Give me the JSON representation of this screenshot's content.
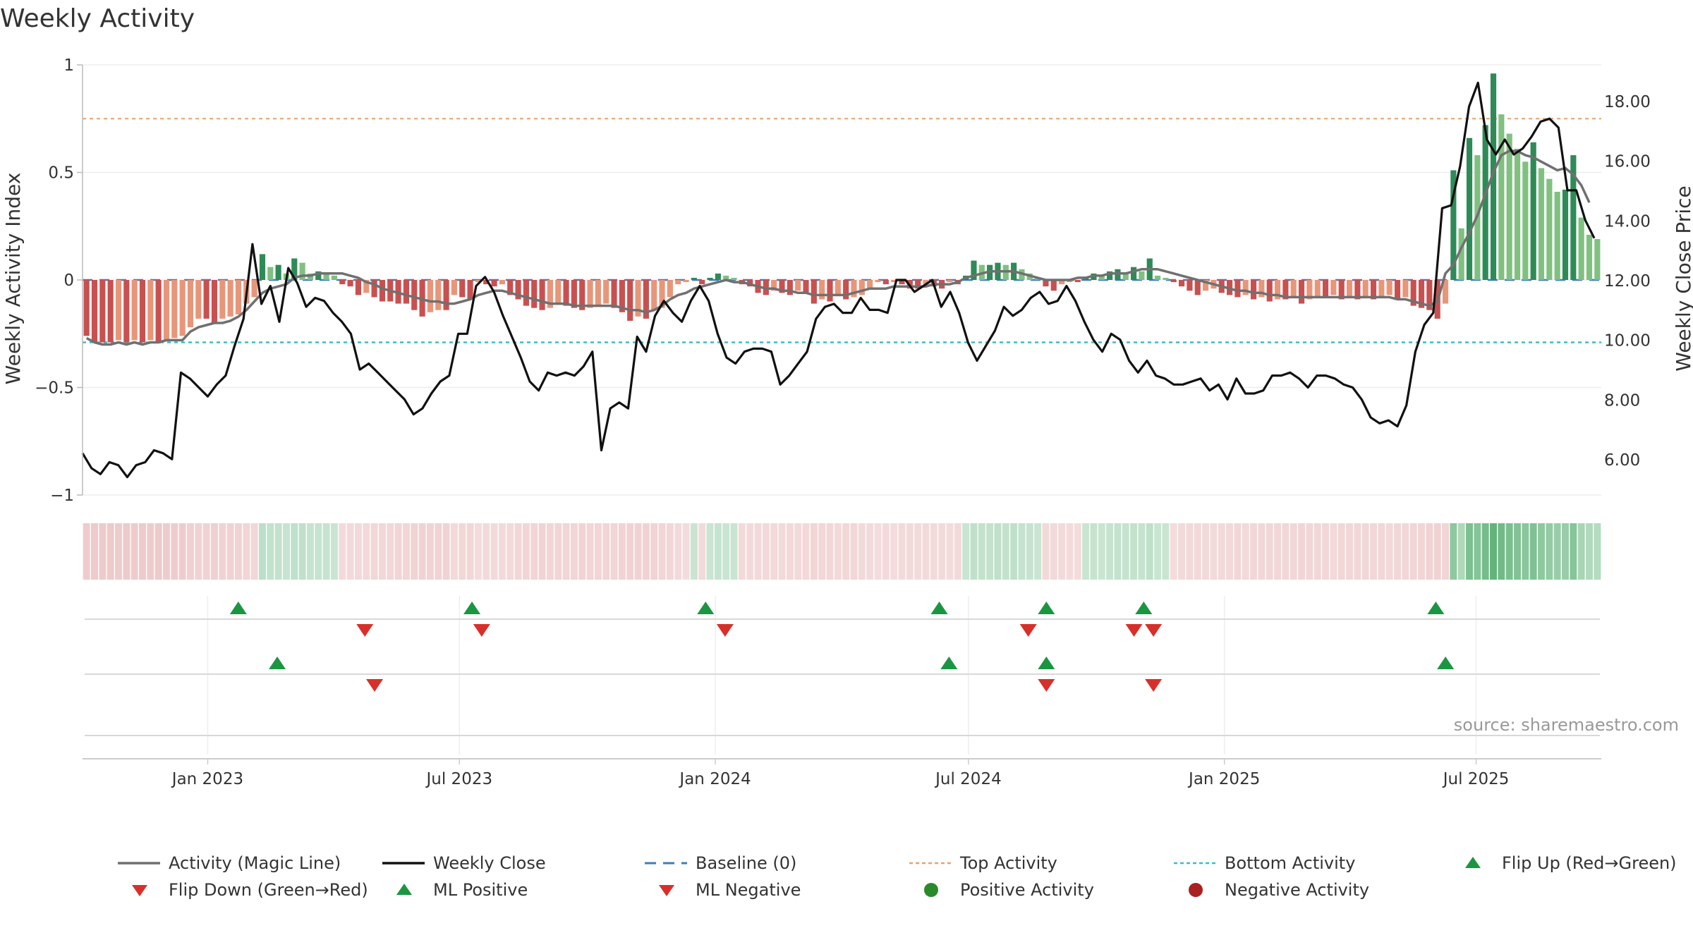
{
  "title": "Weekly Activity",
  "source": "source: sharemaestro.com",
  "colors": {
    "green_dark": "#2e8b57",
    "green_light": "#80c080",
    "red_dark": "#c95050",
    "red_light": "#e8967a",
    "magic_line": "#707070",
    "close_line": "#111111",
    "baseline": "#3a7ebf",
    "top_line": "#f0a060",
    "bottom_line": "#30c0d0",
    "flip_up": "#1a9641",
    "flip_down": "#d7302a"
  },
  "chart_data": {
    "type": "bar",
    "title": "Weekly Activity",
    "ylabel_left": "Weekly Activity Index",
    "ylabel_right": "Weekly Close Price",
    "ylim_left": [
      -1,
      1
    ],
    "ylim_right": [
      4.8,
      19.2
    ],
    "yticks_left": [
      "1",
      "0.5",
      "0",
      "−0.5",
      "−1"
    ],
    "yticks_left_values": [
      1,
      0.5,
      0,
      -0.5,
      -1
    ],
    "yticks_right": [
      "18.00",
      "16.00",
      "14.00",
      "12.00",
      "10.00",
      "8.00",
      "6.00"
    ],
    "yticks_right_values": [
      18,
      16,
      14,
      12,
      10,
      8,
      6
    ],
    "x_start": "2022-10-03",
    "x_end": "2025-09-29",
    "xticks": [
      {
        "label": "Jan 2023",
        "date": "2023-01-01"
      },
      {
        "label": "Jul 2023",
        "date": "2023-07-01"
      },
      {
        "label": "Jan 2024",
        "date": "2024-01-01"
      },
      {
        "label": "Jul 2024",
        "date": "2024-07-01"
      },
      {
        "label": "Jan 2025",
        "date": "2025-01-01"
      },
      {
        "label": "Jul 2025",
        "date": "2025-07-01"
      }
    ],
    "reference_lines": {
      "baseline": 0,
      "top_activity": 0.75,
      "bottom_activity": -0.29
    },
    "bar_series": {
      "name": "Weekly Activity Index (bars)",
      "values": [
        -0.26,
        -0.29,
        -0.29,
        -0.29,
        -0.28,
        -0.29,
        -0.28,
        -0.29,
        -0.28,
        -0.29,
        -0.28,
        -0.27,
        -0.26,
        -0.22,
        -0.18,
        -0.18,
        -0.2,
        -0.18,
        -0.17,
        -0.16,
        -0.11,
        -0.08,
        0.12,
        0.06,
        0.07,
        0.03,
        0.1,
        0.08,
        0.03,
        0.04,
        0.03,
        0.02,
        -0.02,
        -0.03,
        -0.07,
        -0.06,
        -0.08,
        -0.1,
        -0.1,
        -0.11,
        -0.11,
        -0.14,
        -0.17,
        -0.15,
        -0.14,
        -0.14,
        -0.07,
        -0.08,
        -0.09,
        -0.01,
        -0.02,
        -0.03,
        -0.02,
        -0.07,
        -0.09,
        -0.12,
        -0.13,
        -0.14,
        -0.13,
        -0.11,
        -0.12,
        -0.13,
        -0.14,
        -0.13,
        -0.12,
        -0.11,
        -0.13,
        -0.15,
        -0.19,
        -0.17,
        -0.18,
        -0.14,
        -0.13,
        -0.08,
        -0.02,
        -0.01,
        0.01,
        -0.02,
        0.01,
        0.03,
        0.02,
        0.01,
        -0.02,
        -0.03,
        -0.06,
        -0.07,
        -0.05,
        -0.06,
        -0.07,
        -0.05,
        -0.06,
        -0.11,
        -0.09,
        -0.1,
        -0.07,
        -0.09,
        -0.08,
        -0.07,
        -0.04,
        -0.01,
        -0.02,
        -0.01,
        -0.02,
        -0.04,
        -0.04,
        -0.02,
        -0.03,
        -0.04,
        -0.01,
        -0.02,
        0.02,
        0.09,
        0.07,
        0.07,
        0.08,
        0.07,
        0.08,
        0.05,
        0.03,
        0.01,
        -0.03,
        -0.05,
        -0.02,
        -0.01,
        -0.01,
        0.01,
        0.03,
        0.02,
        0.04,
        0.05,
        0.03,
        0.06,
        0.04,
        0.1,
        0.02,
        0.01,
        -0.01,
        -0.03,
        -0.05,
        -0.07,
        -0.05,
        -0.04,
        -0.06,
        -0.07,
        -0.08,
        -0.07,
        -0.09,
        -0.08,
        -0.1,
        -0.09,
        -0.09,
        -0.08,
        -0.11,
        -0.09,
        -0.08,
        -0.08,
        -0.07,
        -0.09,
        -0.08,
        -0.09,
        -0.08,
        -0.09,
        -0.08,
        -0.07,
        -0.09,
        -0.08,
        -0.12,
        -0.13,
        -0.14,
        -0.18,
        -0.11,
        0.51,
        0.24,
        0.66,
        0.58,
        0.72,
        0.96,
        0.77,
        0.68,
        0.61,
        0.55,
        0.64,
        0.52,
        0.47,
        0.41,
        0.42,
        0.58,
        0.29,
        0.21,
        0.19
      ]
    },
    "magic_line": {
      "name": "Activity (Magic Line)",
      "values": [
        -0.27,
        -0.29,
        -0.3,
        -0.3,
        -0.29,
        -0.3,
        -0.29,
        -0.3,
        -0.29,
        -0.29,
        -0.28,
        -0.28,
        -0.28,
        -0.24,
        -0.22,
        -0.21,
        -0.2,
        -0.2,
        -0.19,
        -0.17,
        -0.14,
        -0.1,
        -0.06,
        -0.04,
        -0.03,
        -0.02,
        0.01,
        0.02,
        0.02,
        0.03,
        0.03,
        0.03,
        0.03,
        0.02,
        0.01,
        -0.01,
        -0.02,
        -0.04,
        -0.05,
        -0.06,
        -0.07,
        -0.08,
        -0.09,
        -0.1,
        -0.1,
        -0.11,
        -0.11,
        -0.1,
        -0.09,
        -0.07,
        -0.06,
        -0.05,
        -0.05,
        -0.06,
        -0.07,
        -0.08,
        -0.09,
        -0.1,
        -0.11,
        -0.11,
        -0.11,
        -0.12,
        -0.12,
        -0.12,
        -0.12,
        -0.12,
        -0.12,
        -0.13,
        -0.14,
        -0.14,
        -0.15,
        -0.14,
        -0.12,
        -0.09,
        -0.07,
        -0.06,
        -0.04,
        -0.03,
        -0.02,
        -0.01,
        0.0,
        -0.01,
        -0.01,
        -0.02,
        -0.03,
        -0.04,
        -0.04,
        -0.05,
        -0.05,
        -0.06,
        -0.06,
        -0.07,
        -0.07,
        -0.07,
        -0.07,
        -0.07,
        -0.06,
        -0.05,
        -0.04,
        -0.04,
        -0.04,
        -0.03,
        -0.03,
        -0.03,
        -0.03,
        -0.03,
        -0.02,
        -0.02,
        -0.02,
        -0.01,
        0.01,
        0.02,
        0.03,
        0.04,
        0.04,
        0.04,
        0.04,
        0.03,
        0.02,
        0.01,
        0.0,
        0.0,
        0.0,
        0.0,
        0.01,
        0.01,
        0.02,
        0.02,
        0.03,
        0.03,
        0.03,
        0.04,
        0.05,
        0.05,
        0.05,
        0.04,
        0.03,
        0.02,
        0.01,
        0.0,
        -0.01,
        -0.02,
        -0.03,
        -0.04,
        -0.05,
        -0.05,
        -0.06,
        -0.06,
        -0.07,
        -0.07,
        -0.08,
        -0.08,
        -0.08,
        -0.08,
        -0.08,
        -0.08,
        -0.08,
        -0.08,
        -0.08,
        -0.08,
        -0.08,
        -0.08,
        -0.08,
        -0.08,
        -0.09,
        -0.09,
        -0.1,
        -0.11,
        -0.12,
        -0.1,
        0.03,
        0.07,
        0.15,
        0.22,
        0.3,
        0.4,
        0.5,
        0.58,
        0.6,
        0.6,
        0.58,
        0.57,
        0.55,
        0.53,
        0.51,
        0.52,
        0.49,
        0.44,
        0.36
      ]
    },
    "close_series": {
      "name": "Weekly Close",
      "values": [
        6.2,
        5.7,
        5.5,
        5.9,
        5.8,
        5.4,
        5.8,
        5.9,
        6.3,
        6.2,
        6.0,
        8.9,
        8.7,
        8.4,
        8.1,
        8.5,
        8.8,
        9.8,
        10.7,
        13.2,
        11.2,
        11.8,
        10.6,
        12.4,
        11.9,
        11.1,
        11.4,
        11.3,
        10.9,
        10.6,
        10.2,
        9.0,
        9.2,
        8.9,
        8.6,
        8.3,
        8.0,
        7.5,
        7.7,
        8.2,
        8.6,
        8.8,
        10.2,
        10.2,
        11.8,
        12.1,
        11.6,
        10.8,
        10.1,
        9.4,
        8.6,
        8.3,
        8.9,
        8.8,
        8.9,
        8.8,
        9.1,
        9.6,
        6.3,
        7.7,
        7.9,
        7.7,
        10.1,
        9.6,
        10.8,
        11.3,
        10.9,
        10.6,
        11.3,
        11.8,
        11.3,
        10.2,
        9.4,
        9.2,
        9.6,
        9.7,
        9.7,
        9.6,
        8.5,
        8.8,
        9.2,
        9.6,
        10.7,
        11.1,
        11.2,
        10.9,
        10.9,
        11.4,
        11.0,
        11.0,
        10.9,
        12.0,
        12.0,
        11.6,
        11.8,
        12.0,
        11.1,
        11.6,
        10.9,
        9.9,
        9.3,
        9.8,
        10.3,
        11.1,
        10.8,
        11.0,
        11.4,
        11.6,
        11.2,
        11.3,
        11.8,
        11.3,
        10.6,
        10.0,
        9.6,
        10.2,
        10.0,
        9.3,
        8.9,
        9.3,
        8.8,
        8.7,
        8.5,
        8.5,
        8.6,
        8.7,
        8.3,
        8.5,
        8.0,
        8.7,
        8.2,
        8.2,
        8.3,
        8.8,
        8.8,
        8.9,
        8.7,
        8.4,
        8.8,
        8.8,
        8.7,
        8.5,
        8.4,
        8.0,
        7.4,
        7.2,
        7.3,
        7.1,
        7.8,
        9.6,
        10.5,
        10.9,
        14.4,
        14.5,
        15.8,
        17.8,
        18.6,
        16.7,
        16.2,
        16.7,
        16.2,
        16.4,
        16.8,
        17.3,
        17.4,
        17.1,
        15.0,
        15.0,
        14.0,
        13.4
      ],
      "note": "close series covers the visible black line; later weeks aligned to the right end of the axis"
    },
    "band_strip": {
      "name": "Weekly activity shading strip",
      "values": [
        -0.26,
        -0.29,
        -0.29,
        -0.29,
        -0.28,
        -0.29,
        -0.28,
        -0.29,
        -0.28,
        -0.29,
        -0.28,
        -0.27,
        -0.26,
        -0.22,
        -0.18,
        -0.18,
        -0.2,
        -0.18,
        -0.17,
        -0.16,
        -0.11,
        -0.08,
        0.12,
        0.06,
        0.07,
        0.03,
        0.1,
        0.08,
        0.03,
        0.04,
        0.03,
        0.02,
        -0.02,
        -0.03,
        -0.07,
        -0.06,
        -0.08,
        -0.1,
        -0.1,
        -0.11,
        -0.11,
        -0.14,
        -0.17,
        -0.15,
        -0.14,
        -0.14,
        -0.07,
        -0.08,
        -0.09,
        -0.01,
        -0.02,
        -0.03,
        -0.02,
        -0.07,
        -0.09,
        -0.12,
        -0.13,
        -0.14,
        -0.13,
        -0.11,
        -0.12,
        -0.13,
        -0.14,
        -0.13,
        -0.12,
        -0.11,
        -0.13,
        -0.15,
        -0.19,
        -0.17,
        -0.18,
        -0.14,
        -0.13,
        -0.08,
        -0.02,
        -0.01,
        0.01,
        -0.02,
        0.01,
        0.03,
        0.02,
        0.01,
        -0.02,
        -0.03,
        -0.06,
        -0.07,
        -0.05,
        -0.06,
        -0.07,
        -0.05,
        -0.06,
        -0.11,
        -0.09,
        -0.1,
        -0.07,
        -0.09,
        -0.08,
        -0.07,
        -0.04,
        -0.01,
        -0.02,
        -0.01,
        -0.02,
        -0.04,
        -0.04,
        -0.02,
        -0.03,
        -0.04,
        -0.01,
        -0.02,
        0.02,
        0.09,
        0.07,
        0.07,
        0.08,
        0.07,
        0.08,
        0.05,
        0.03,
        0.01,
        -0.03,
        -0.05,
        -0.02,
        -0.01,
        -0.01,
        0.01,
        0.03,
        0.02,
        0.04,
        0.05,
        0.03,
        0.06,
        0.04,
        0.1,
        0.02,
        0.01,
        -0.01,
        -0.03,
        -0.05,
        -0.07,
        -0.05,
        -0.04,
        -0.06,
        -0.07,
        -0.08,
        -0.07,
        -0.09,
        -0.08,
        -0.1,
        -0.09,
        -0.09,
        -0.08,
        -0.11,
        -0.09,
        -0.08,
        -0.08,
        -0.07,
        -0.09,
        -0.08,
        -0.09,
        -0.08,
        -0.09,
        -0.08,
        -0.07,
        -0.09,
        -0.08,
        -0.12,
        -0.13,
        -0.14,
        -0.18,
        -0.11,
        0.51,
        0.24,
        0.66,
        0.58,
        0.72,
        0.96,
        0.77,
        0.68,
        0.61,
        0.55,
        0.64,
        0.52,
        0.47,
        0.41,
        0.42,
        0.58,
        0.29,
        0.21,
        0.19
      ]
    },
    "flip_up_markers": [
      "2023-01-23",
      "2023-07-10",
      "2023-12-25",
      "2024-06-10",
      "2024-08-26",
      "2024-11-04",
      "2025-06-02"
    ],
    "flip_down_markers": [
      "2023-04-24",
      "2023-07-17",
      "2024-01-08",
      "2024-08-13",
      "2024-10-28",
      "2024-11-11"
    ],
    "ml_positive_markers": [
      "2023-02-20",
      "2024-06-17",
      "2024-08-26",
      "2025-06-09"
    ],
    "ml_negative_markers": [
      "2023-05-01",
      "2024-08-26",
      "2024-11-11"
    ],
    "legend": [
      {
        "key": "magic",
        "label": "Activity (Magic Line)"
      },
      {
        "key": "close",
        "label": "Weekly Close"
      },
      {
        "key": "baseline",
        "label": "Baseline (0)"
      },
      {
        "key": "top",
        "label": "Top Activity"
      },
      {
        "key": "bottom",
        "label": "Bottom Activity"
      },
      {
        "key": "flipup",
        "label": "Flip Up (Red→Green)"
      },
      {
        "key": "flipdown",
        "label": "Flip Down (Green→Red)"
      },
      {
        "key": "mlpos",
        "label": "ML Positive"
      },
      {
        "key": "mlneg",
        "label": "ML Negative"
      },
      {
        "key": "posact",
        "label": "Positive Activity"
      },
      {
        "key": "negact",
        "label": "Negative Activity"
      }
    ]
  }
}
